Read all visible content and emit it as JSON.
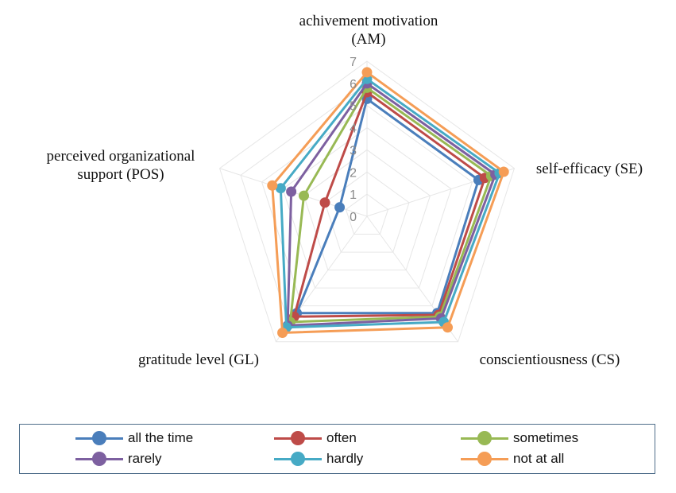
{
  "chart_data": {
    "type": "radar",
    "axes": [
      "achivement motivation\n(AM)",
      "self-efficacy (SE)",
      "conscientiousness (CS)",
      "gratitude level (GL)",
      "perceived organizational\nsupport (POS)"
    ],
    "rlim": [
      0,
      7
    ],
    "ticks": [
      "0",
      "1",
      "2",
      "3",
      "4",
      "5",
      "6",
      "7"
    ],
    "grid": true,
    "legend_position": "bottom",
    "series": [
      {
        "name": "all the time",
        "color": "#4a7ebb",
        "values": [
          5.3,
          5.3,
          5.4,
          5.4,
          1.3
        ]
      },
      {
        "name": "often",
        "color": "#be4b48",
        "values": [
          5.6,
          5.6,
          5.5,
          5.6,
          2.0
        ]
      },
      {
        "name": "sometimes",
        "color": "#98b954",
        "values": [
          5.8,
          5.9,
          5.6,
          5.9,
          3.0
        ]
      },
      {
        "name": "rarely",
        "color": "#7d60a0",
        "values": [
          6.0,
          6.1,
          5.7,
          6.1,
          3.6
        ]
      },
      {
        "name": "hardly",
        "color": "#46aac5",
        "values": [
          6.2,
          6.3,
          5.9,
          6.2,
          4.1
        ]
      },
      {
        "name": "not at all",
        "color": "#f59d56",
        "values": [
          6.5,
          6.5,
          6.2,
          6.5,
          4.5
        ]
      }
    ]
  }
}
